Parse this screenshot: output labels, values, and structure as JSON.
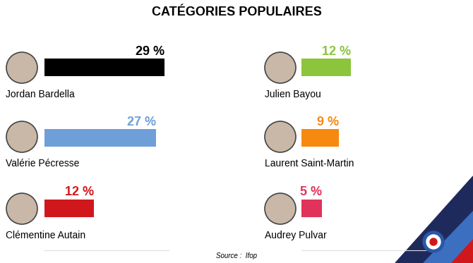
{
  "chart_data": {
    "type": "bar",
    "title": "CATÉGORIES POPULAIRES",
    "subtitle": "Source :  Ifop",
    "orientation": "horizontal",
    "categories": [
      "Jordan Bardella",
      "Valérie Pécresse",
      "Clémentine Autain",
      "Julien Bayou",
      "Laurent Saint-Martin",
      "Audrey Pulvar"
    ],
    "values": [
      29,
      27,
      12,
      12,
      9,
      5
    ],
    "value_labels": [
      "29 %",
      "27 %",
      "12 %",
      "12 %",
      "9 %",
      "5 %"
    ],
    "colors": [
      "#000000",
      "#6f9fd8",
      "#d0181c",
      "#8cc43c",
      "#f7890f",
      "#e0325a"
    ],
    "xlim": [
      0,
      30
    ],
    "data_labels": true,
    "tick_labels": false,
    "grid": false
  }
}
